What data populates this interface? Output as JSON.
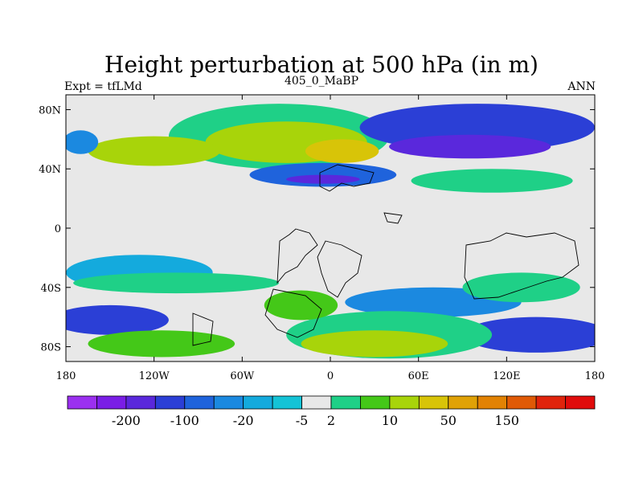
{
  "chart_data": {
    "type": "heatmap",
    "title": "Height perturbation at 500 hPa (in m)",
    "left_string": "Expt = tfLMd",
    "center_string": "405_0_MaBP",
    "right_string": "ANN",
    "x_range": [
      -180,
      180
    ],
    "y_range": [
      -90,
      90
    ],
    "x_ticks": [
      {
        "value": -180,
        "label": "180"
      },
      {
        "value": -120,
        "label": "120W"
      },
      {
        "value": -60,
        "label": "60W"
      },
      {
        "value": 0,
        "label": "0"
      },
      {
        "value": 60,
        "label": "60E"
      },
      {
        "value": 120,
        "label": "120E"
      },
      {
        "value": 180,
        "label": "180"
      }
    ],
    "y_ticks": [
      {
        "value": 80,
        "label": "80N"
      },
      {
        "value": 40,
        "label": "40N"
      },
      {
        "value": 0,
        "label": "0"
      },
      {
        "value": -40,
        "label": "40S"
      },
      {
        "value": -80,
        "label": "80S"
      }
    ],
    "colorbar": {
      "colors": [
        "#9b30f0",
        "#7a1ee6",
        "#5a28dc",
        "#2b3fd6",
        "#1f63dc",
        "#1b89e0",
        "#14aadd",
        "#14c3d6",
        "#e8e8e8",
        "#1fd087",
        "#44c818",
        "#a8d40a",
        "#d8c408",
        "#e0a206",
        "#e28204",
        "#e05a06",
        "#e0240c",
        "#e00c0c"
      ],
      "labels": [
        {
          "after_box": 2,
          "text": "-200"
        },
        {
          "after_box": 4,
          "text": "-100"
        },
        {
          "after_box": 6,
          "text": "-20"
        },
        {
          "after_box": 8,
          "text": "-5"
        },
        {
          "after_box": 9,
          "text": "2"
        },
        {
          "after_box": 11,
          "text": "10"
        },
        {
          "after_box": 13,
          "text": "50"
        },
        {
          "after_box": 15,
          "text": "150"
        }
      ]
    },
    "field_regions": [
      {
        "lon": -140,
        "lat": 52,
        "rlon": 70,
        "rlat": 22,
        "level": 8
      },
      {
        "lon": -35,
        "lat": 62,
        "rlon": 75,
        "rlat": 22,
        "level": 9
      },
      {
        "lon": -30,
        "lat": 58,
        "rlon": 55,
        "rlat": 14,
        "level": 11
      },
      {
        "lon": 8,
        "lat": 52,
        "rlon": 25,
        "rlat": 8,
        "level": 12
      },
      {
        "lon": -120,
        "lat": 52,
        "rlon": 45,
        "rlat": 10,
        "level": 11
      },
      {
        "lon": 100,
        "lat": 68,
        "rlon": 80,
        "rlat": 16,
        "level": 3
      },
      {
        "lon": 95,
        "lat": 55,
        "rlon": 55,
        "rlat": 8,
        "level": 2
      },
      {
        "lon": -170,
        "lat": 58,
        "rlon": 12,
        "rlat": 8,
        "level": 5
      },
      {
        "lon": -5,
        "lat": 36,
        "rlon": 50,
        "rlat": 8,
        "level": 4
      },
      {
        "lon": -5,
        "lat": 33,
        "rlon": 25,
        "rlat": 3,
        "level": 2
      },
      {
        "lon": 110,
        "lat": 32,
        "rlon": 55,
        "rlat": 8,
        "level": 9
      },
      {
        "lon": -10,
        "lat": 14,
        "rlon": 30,
        "rlat": 5,
        "level": 8
      },
      {
        "lon": -130,
        "lat": -30,
        "rlon": 50,
        "rlat": 12,
        "level": 6
      },
      {
        "lon": -105,
        "lat": -37,
        "rlon": 70,
        "rlat": 7,
        "level": 9
      },
      {
        "lon": 70,
        "lat": -50,
        "rlon": 60,
        "rlat": 10,
        "level": 5
      },
      {
        "lon": 130,
        "lat": -40,
        "rlon": 40,
        "rlat": 10,
        "level": 9
      },
      {
        "lon": -150,
        "lat": -62,
        "rlon": 40,
        "rlat": 10,
        "level": 3
      },
      {
        "lon": 140,
        "lat": -72,
        "rlon": 50,
        "rlat": 12,
        "level": 3
      },
      {
        "lon": -115,
        "lat": -78,
        "rlon": 50,
        "rlat": 9,
        "level": 10
      },
      {
        "lon": 40,
        "lat": -72,
        "rlon": 70,
        "rlat": 16,
        "level": 9
      },
      {
        "lon": 30,
        "lat": -78,
        "rlon": 50,
        "rlat": 9,
        "level": 11
      },
      {
        "lon": -20,
        "lat": -52,
        "rlon": 25,
        "rlat": 10,
        "level": 10
      }
    ]
  }
}
